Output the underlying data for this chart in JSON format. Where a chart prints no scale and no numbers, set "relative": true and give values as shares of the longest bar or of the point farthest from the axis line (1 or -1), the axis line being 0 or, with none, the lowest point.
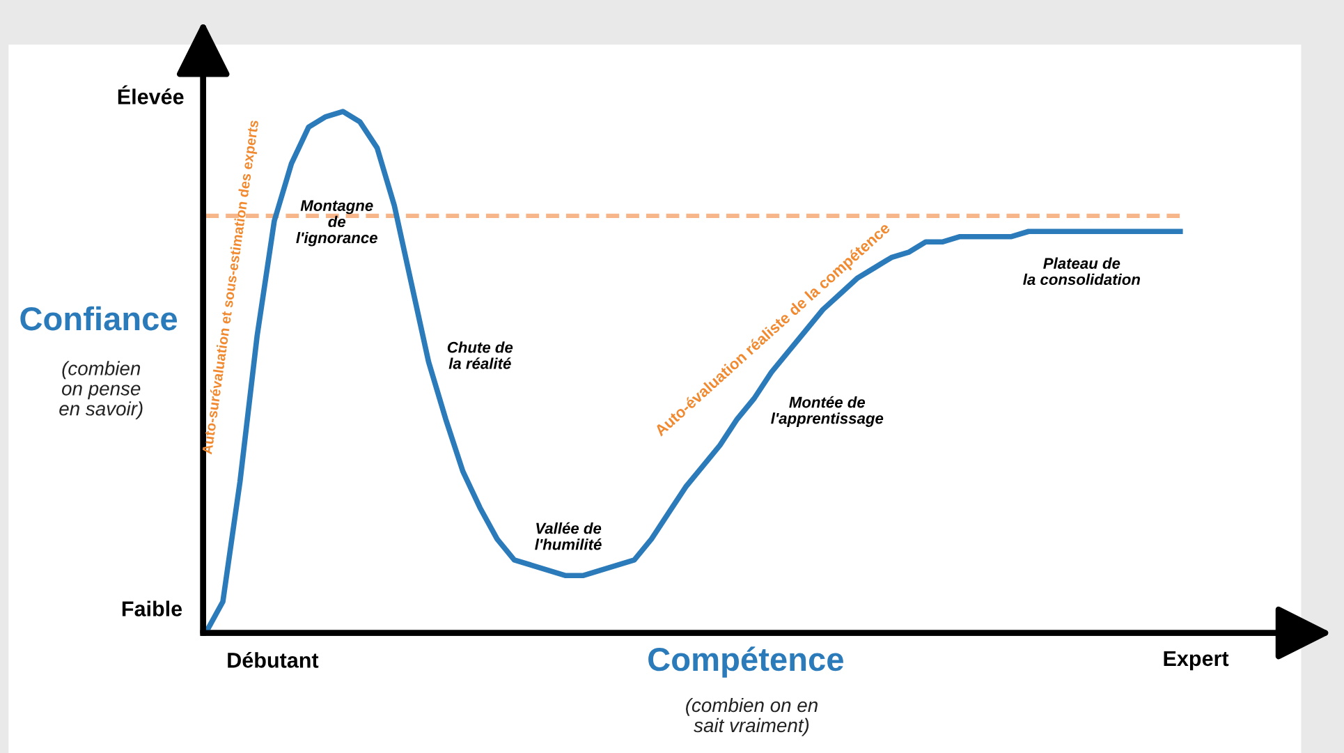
{
  "chart_data": {
    "type": "line",
    "relative": true,
    "xlabel": "Compétence",
    "ylabel": "Confiance",
    "categories": [
      null,
      null,
      null,
      null,
      null,
      null,
      null,
      null,
      null,
      null,
      null,
      null,
      null,
      null,
      null,
      null,
      null,
      null,
      null,
      null,
      null,
      null,
      null,
      null,
      null,
      null,
      null,
      null,
      null,
      null,
      null,
      null,
      null,
      null,
      null,
      null,
      null,
      null,
      null,
      null,
      null,
      null,
      null,
      null,
      null,
      null,
      null,
      null,
      null,
      null,
      null,
      null,
      null,
      null,
      null,
      null,
      null,
      null
    ],
    "series": [
      {
        "color": "#2b7bba",
        "values": [
          0,
          0.06,
          0.29,
          0.57,
          0.79,
          0.9,
          0.97,
          0.99,
          1,
          0.98,
          0.93,
          0.82,
          0.67,
          0.52,
          0.41,
          0.31,
          0.24,
          0.18,
          0.14,
          0.13,
          0.12,
          0.11,
          0.11,
          0.12,
          0.13,
          0.14,
          0.18,
          0.23,
          0.28,
          0.32,
          0.36,
          0.41,
          0.45,
          0.5,
          0.54,
          0.58,
          0.62,
          0.65,
          0.68,
          0.7,
          0.72,
          0.73,
          0.75,
          0.75,
          0.76,
          0.76,
          0.76,
          0.76,
          0.77,
          0.77,
          0.77,
          0.77,
          0.77,
          0.77,
          0.77,
          0.77,
          0.77,
          0.77
        ]
      }
    ],
    "ref_lines": [
      {
        "axis": "y",
        "value": 0.8,
        "color": "#f7b58a",
        "line_style": "dashed"
      }
    ],
    "annotations": [
      "Élevée",
      "Faible",
      "Débutant",
      "Expert",
      "(combien on pense en savoir)",
      "(combien on en sait vraiment)",
      "Montagne de l'ignorance",
      "Chute de la réalité",
      "Vallée de l'humilité",
      "Montée de l'apprentissage",
      "Plateau de la consolidation",
      "Auto-surévaluation et sous-estimation des experts",
      "Auto-évaluation réaliste de la compétence"
    ],
    "marker": "none",
    "line_style": "solid"
  }
}
